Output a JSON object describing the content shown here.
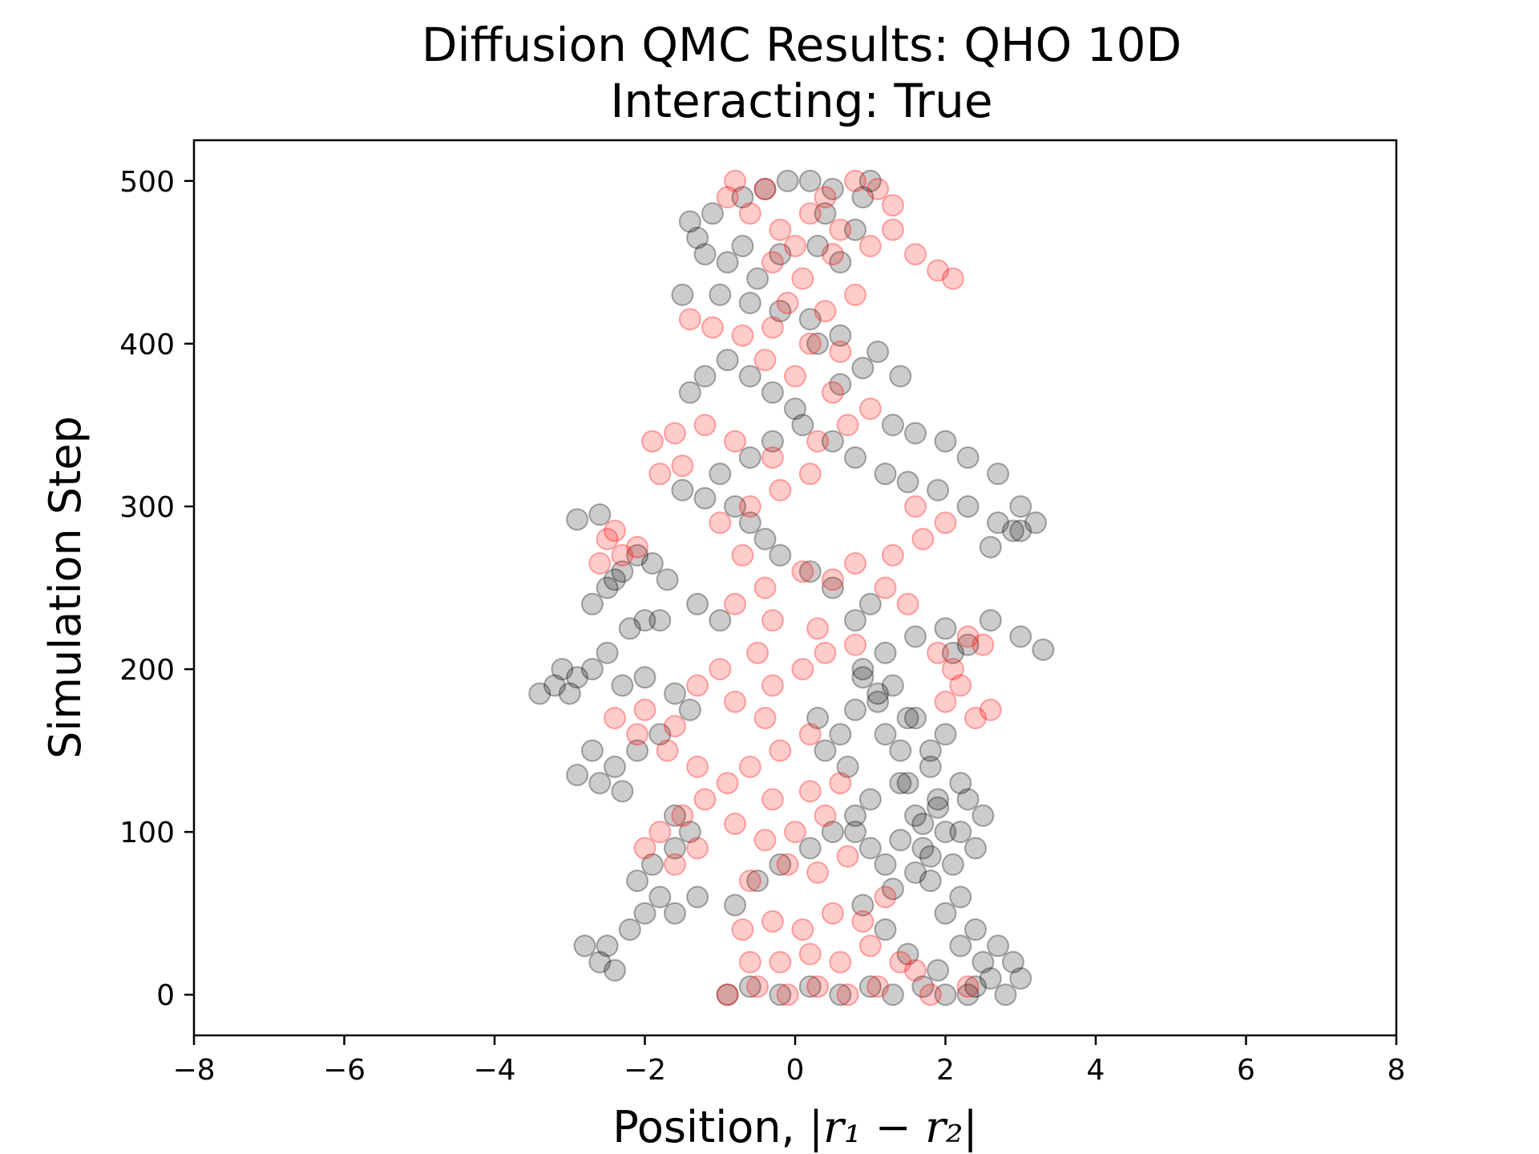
{
  "chart_data": {
    "type": "scatter",
    "title": "Diffusion QMC Results: QHO 10D",
    "subtitle": "Interacting: True",
    "xlabel": "Position, |r₁ − r₂|",
    "xlabel_parts": {
      "prefix": "Position, ",
      "math": "|r₁ − r₂|"
    },
    "ylabel": "Simulation Step",
    "xlim": [
      -8,
      8
    ],
    "ylim": [
      -25,
      525
    ],
    "x_ticks": [
      -8,
      -6,
      -4,
      -2,
      0,
      2,
      4,
      6,
      8
    ],
    "x_tick_labels": [
      "−8",
      "−6",
      "−4",
      "−2",
      "0",
      "2",
      "4",
      "6",
      "8"
    ],
    "y_ticks": [
      0,
      100,
      200,
      300,
      400,
      500
    ],
    "y_tick_labels": [
      "0",
      "100",
      "200",
      "300",
      "400",
      "500"
    ],
    "grid": false,
    "legend": "none",
    "marker": "open-circle",
    "alpha": 0.2,
    "series": [
      {
        "color": "#000000",
        "points": [
          [
            2.3,
            0
          ],
          [
            2.8,
            0
          ],
          [
            2.6,
            10
          ],
          [
            3.0,
            10
          ],
          [
            2.5,
            20
          ],
          [
            2.9,
            20
          ],
          [
            2.2,
            30
          ],
          [
            2.7,
            30
          ],
          [
            2.4,
            40
          ],
          [
            2.0,
            50
          ],
          [
            2.2,
            60
          ],
          [
            1.8,
            70
          ],
          [
            2.1,
            80
          ],
          [
            1.7,
            90
          ],
          [
            2.0,
            100
          ],
          [
            1.6,
            110
          ],
          [
            1.9,
            120
          ],
          [
            1.5,
            130
          ],
          [
            2.2,
            130
          ],
          [
            1.8,
            140
          ],
          [
            1.4,
            150
          ],
          [
            1.2,
            160
          ],
          [
            1.5,
            170
          ],
          [
            1.1,
            180
          ],
          [
            1.3,
            190
          ],
          [
            0.9,
            200
          ],
          [
            1.2,
            210
          ],
          [
            1.6,
            220
          ],
          [
            2.0,
            225
          ],
          [
            2.6,
            230
          ],
          [
            3.0,
            220
          ],
          [
            3.3,
            212
          ],
          [
            2.1,
            210
          ],
          [
            2.3,
            215
          ],
          [
            0.8,
            230
          ],
          [
            1.0,
            240
          ],
          [
            0.5,
            250
          ],
          [
            0.2,
            260
          ],
          [
            -0.2,
            270
          ],
          [
            -0.4,
            280
          ],
          [
            -0.6,
            290
          ],
          [
            -0.8,
            300
          ],
          [
            -1.2,
            305
          ],
          [
            -1.5,
            310
          ],
          [
            -1.0,
            320
          ],
          [
            -0.6,
            330
          ],
          [
            -0.3,
            340
          ],
          [
            0.1,
            350
          ],
          [
            0.5,
            340
          ],
          [
            0.8,
            330
          ],
          [
            1.2,
            320
          ],
          [
            1.5,
            315
          ],
          [
            1.9,
            310
          ],
          [
            2.3,
            300
          ],
          [
            2.7,
            290
          ],
          [
            3.0,
            285
          ],
          [
            3.2,
            290
          ],
          [
            1.3,
            350
          ],
          [
            1.6,
            345
          ],
          [
            2.0,
            340
          ],
          [
            2.3,
            330
          ],
          [
            2.7,
            320
          ],
          [
            3.0,
            300
          ],
          [
            2.6,
            275
          ],
          [
            2.9,
            285
          ],
          [
            0.0,
            360
          ],
          [
            -0.3,
            370
          ],
          [
            -0.6,
            380
          ],
          [
            -0.9,
            390
          ],
          [
            -1.2,
            380
          ],
          [
            -1.4,
            370
          ],
          [
            0.6,
            375
          ],
          [
            0.9,
            385
          ],
          [
            1.1,
            395
          ],
          [
            1.4,
            380
          ],
          [
            0.3,
            400
          ],
          [
            0.6,
            405
          ],
          [
            0.2,
            415
          ],
          [
            -0.2,
            420
          ],
          [
            -0.6,
            425
          ],
          [
            -1.0,
            430
          ],
          [
            -1.5,
            430
          ],
          [
            -0.5,
            440
          ],
          [
            -0.9,
            450
          ],
          [
            -1.2,
            455
          ],
          [
            -0.7,
            460
          ],
          [
            -1.3,
            465
          ],
          [
            -1.4,
            475
          ],
          [
            -1.1,
            480
          ],
          [
            -0.7,
            490
          ],
          [
            -0.4,
            495
          ],
          [
            -0.1,
            500
          ],
          [
            0.2,
            500
          ],
          [
            0.5,
            495
          ],
          [
            0.9,
            490
          ],
          [
            1.0,
            500
          ],
          [
            0.4,
            480
          ],
          [
            0.8,
            470
          ],
          [
            0.3,
            460
          ],
          [
            -0.2,
            455
          ],
          [
            0.6,
            450
          ],
          [
            -1.0,
            230
          ],
          [
            -1.3,
            240
          ],
          [
            -1.7,
            255
          ],
          [
            -1.9,
            265
          ],
          [
            -2.1,
            270
          ],
          [
            -2.3,
            260
          ],
          [
            -2.5,
            250
          ],
          [
            -2.7,
            240
          ],
          [
            -2.4,
            255
          ],
          [
            -2.9,
            292
          ],
          [
            -2.6,
            295
          ],
          [
            -2.0,
            230
          ],
          [
            -2.2,
            225
          ],
          [
            -1.8,
            230
          ],
          [
            -2.5,
            210
          ],
          [
            -2.7,
            200
          ],
          [
            -2.9,
            195
          ],
          [
            -3.1,
            200
          ],
          [
            -3.2,
            190
          ],
          [
            -3.4,
            185
          ],
          [
            -3.0,
            185
          ],
          [
            -2.3,
            190
          ],
          [
            -2.0,
            195
          ],
          [
            -1.6,
            185
          ],
          [
            -1.4,
            175
          ],
          [
            -1.8,
            160
          ],
          [
            -2.1,
            150
          ],
          [
            -2.4,
            140
          ],
          [
            -2.7,
            150
          ],
          [
            -2.9,
            135
          ],
          [
            -2.6,
            130
          ],
          [
            -2.3,
            125
          ],
          [
            -1.6,
            110
          ],
          [
            -1.4,
            100
          ],
          [
            -1.6,
            90
          ],
          [
            -1.9,
            80
          ],
          [
            -2.1,
            70
          ],
          [
            -1.8,
            60
          ],
          [
            -2.0,
            50
          ],
          [
            -2.2,
            40
          ],
          [
            -2.5,
            30
          ],
          [
            -2.8,
            30
          ],
          [
            -2.6,
            20
          ],
          [
            -2.4,
            15
          ],
          [
            -1.6,
            50
          ],
          [
            -1.3,
            60
          ],
          [
            -0.8,
            55
          ],
          [
            -0.5,
            70
          ],
          [
            -0.2,
            80
          ],
          [
            0.2,
            90
          ],
          [
            0.5,
            100
          ],
          [
            0.8,
            110
          ],
          [
            1.0,
            120
          ],
          [
            0.7,
            140
          ],
          [
            0.4,
            150
          ],
          [
            0.6,
            160
          ],
          [
            0.3,
            170
          ],
          [
            0.8,
            175
          ],
          [
            1.1,
            185
          ],
          [
            0.9,
            195
          ],
          [
            -0.9,
            0
          ],
          [
            -0.6,
            5
          ],
          [
            -0.2,
            0
          ],
          [
            0.2,
            5
          ],
          [
            0.6,
            0
          ],
          [
            1.0,
            5
          ],
          [
            1.3,
            0
          ],
          [
            1.7,
            5
          ],
          [
            2.0,
            0
          ],
          [
            2.4,
            5
          ],
          [
            1.9,
            15
          ],
          [
            1.5,
            25
          ],
          [
            1.2,
            40
          ],
          [
            0.9,
            55
          ],
          [
            1.3,
            65
          ],
          [
            1.6,
            75
          ],
          [
            1.8,
            85
          ],
          [
            1.4,
            95
          ],
          [
            1.7,
            105
          ],
          [
            1.9,
            115
          ],
          [
            2.3,
            120
          ],
          [
            2.5,
            110
          ],
          [
            2.2,
            100
          ],
          [
            2.4,
            90
          ],
          [
            1.2,
            80
          ],
          [
            1.0,
            90
          ],
          [
            0.8,
            100
          ],
          [
            1.4,
            130
          ],
          [
            1.8,
            150
          ],
          [
            2.0,
            160
          ],
          [
            1.6,
            170
          ]
        ]
      },
      {
        "color": "#ff0000",
        "points": [
          [
            -0.9,
            0
          ],
          [
            -0.5,
            5
          ],
          [
            -0.1,
            0
          ],
          [
            0.3,
            5
          ],
          [
            0.7,
            0
          ],
          [
            1.1,
            5
          ],
          [
            1.8,
            0
          ],
          [
            2.3,
            5
          ],
          [
            -0.6,
            20
          ],
          [
            -0.2,
            20
          ],
          [
            0.2,
            25
          ],
          [
            0.6,
            20
          ],
          [
            1.0,
            30
          ],
          [
            1.4,
            20
          ],
          [
            1.6,
            15
          ],
          [
            -0.7,
            40
          ],
          [
            -0.3,
            45
          ],
          [
            0.1,
            40
          ],
          [
            0.5,
            50
          ],
          [
            0.9,
            45
          ],
          [
            1.2,
            60
          ],
          [
            -0.6,
            70
          ],
          [
            -0.1,
            80
          ],
          [
            0.3,
            75
          ],
          [
            0.7,
            85
          ],
          [
            -0.4,
            95
          ],
          [
            0.0,
            100
          ],
          [
            0.4,
            110
          ],
          [
            -0.8,
            105
          ],
          [
            -0.3,
            120
          ],
          [
            0.2,
            125
          ],
          [
            0.6,
            130
          ],
          [
            -1.2,
            120
          ],
          [
            -1.5,
            110
          ],
          [
            -1.8,
            100
          ],
          [
            -2.0,
            90
          ],
          [
            -1.6,
            80
          ],
          [
            -1.3,
            90
          ],
          [
            -0.9,
            130
          ],
          [
            -1.3,
            140
          ],
          [
            -1.7,
            150
          ],
          [
            -2.1,
            160
          ],
          [
            -2.4,
            170
          ],
          [
            -2.0,
            175
          ],
          [
            -1.6,
            165
          ],
          [
            -0.6,
            140
          ],
          [
            -0.2,
            150
          ],
          [
            0.2,
            160
          ],
          [
            -0.4,
            170
          ],
          [
            -0.8,
            180
          ],
          [
            -0.3,
            190
          ],
          [
            0.1,
            200
          ],
          [
            -0.5,
            210
          ],
          [
            -1.0,
            200
          ],
          [
            -1.3,
            190
          ],
          [
            0.4,
            210
          ],
          [
            0.8,
            215
          ],
          [
            0.3,
            225
          ],
          [
            -0.3,
            230
          ],
          [
            -0.8,
            240
          ],
          [
            -0.4,
            250
          ],
          [
            0.1,
            260
          ],
          [
            0.5,
            255
          ],
          [
            0.8,
            265
          ],
          [
            1.2,
            250
          ],
          [
            1.5,
            240
          ],
          [
            1.3,
            270
          ],
          [
            1.7,
            280
          ],
          [
            2.0,
            290
          ],
          [
            1.6,
            300
          ],
          [
            1.9,
            210
          ],
          [
            2.1,
            200
          ],
          [
            2.2,
            190
          ],
          [
            2.0,
            180
          ],
          [
            2.3,
            220
          ],
          [
            2.5,
            215
          ],
          [
            2.6,
            175
          ],
          [
            2.4,
            170
          ],
          [
            -2.5,
            280
          ],
          [
            -2.3,
            270
          ],
          [
            -2.1,
            275
          ],
          [
            -2.6,
            265
          ],
          [
            -2.4,
            285
          ],
          [
            -0.7,
            270
          ],
          [
            -1.0,
            290
          ],
          [
            -0.6,
            300
          ],
          [
            -0.2,
            310
          ],
          [
            0.2,
            320
          ],
          [
            -0.3,
            330
          ],
          [
            -0.8,
            340
          ],
          [
            -1.2,
            350
          ],
          [
            -1.6,
            345
          ],
          [
            -1.9,
            340
          ],
          [
            -1.5,
            325
          ],
          [
            -1.8,
            320
          ],
          [
            0.3,
            340
          ],
          [
            0.7,
            350
          ],
          [
            1.0,
            360
          ],
          [
            0.5,
            370
          ],
          [
            0.0,
            380
          ],
          [
            -0.4,
            390
          ],
          [
            0.2,
            400
          ],
          [
            0.6,
            395
          ],
          [
            -0.3,
            410
          ],
          [
            -0.7,
            405
          ],
          [
            -1.1,
            410
          ],
          [
            -1.4,
            415
          ],
          [
            0.4,
            420
          ],
          [
            0.8,
            430
          ],
          [
            0.1,
            440
          ],
          [
            -0.3,
            450
          ],
          [
            0.5,
            455
          ],
          [
            1.0,
            460
          ],
          [
            1.3,
            470
          ],
          [
            1.6,
            455
          ],
          [
            1.9,
            445
          ],
          [
            2.1,
            440
          ],
          [
            0.6,
            470
          ],
          [
            0.2,
            480
          ],
          [
            -0.2,
            470
          ],
          [
            -0.6,
            480
          ],
          [
            -0.9,
            490
          ],
          [
            -0.8,
            500
          ],
          [
            -0.4,
            495
          ],
          [
            0.4,
            490
          ],
          [
            0.8,
            500
          ],
          [
            1.1,
            495
          ],
          [
            1.3,
            485
          ],
          [
            0.0,
            460
          ],
          [
            -0.1,
            425
          ]
        ]
      }
    ]
  }
}
